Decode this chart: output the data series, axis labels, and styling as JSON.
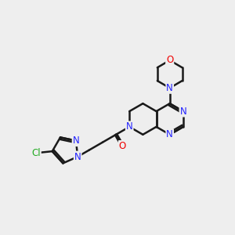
{
  "background_color": "#eeeeee",
  "bond_color": "#1a1a1a",
  "bond_width": 1.8,
  "atom_colors": {
    "N": "#2222ff",
    "O": "#ee0000",
    "Cl": "#22aa22",
    "C": "#1a1a1a"
  },
  "font_size": 8.5,
  "BL": 20
}
